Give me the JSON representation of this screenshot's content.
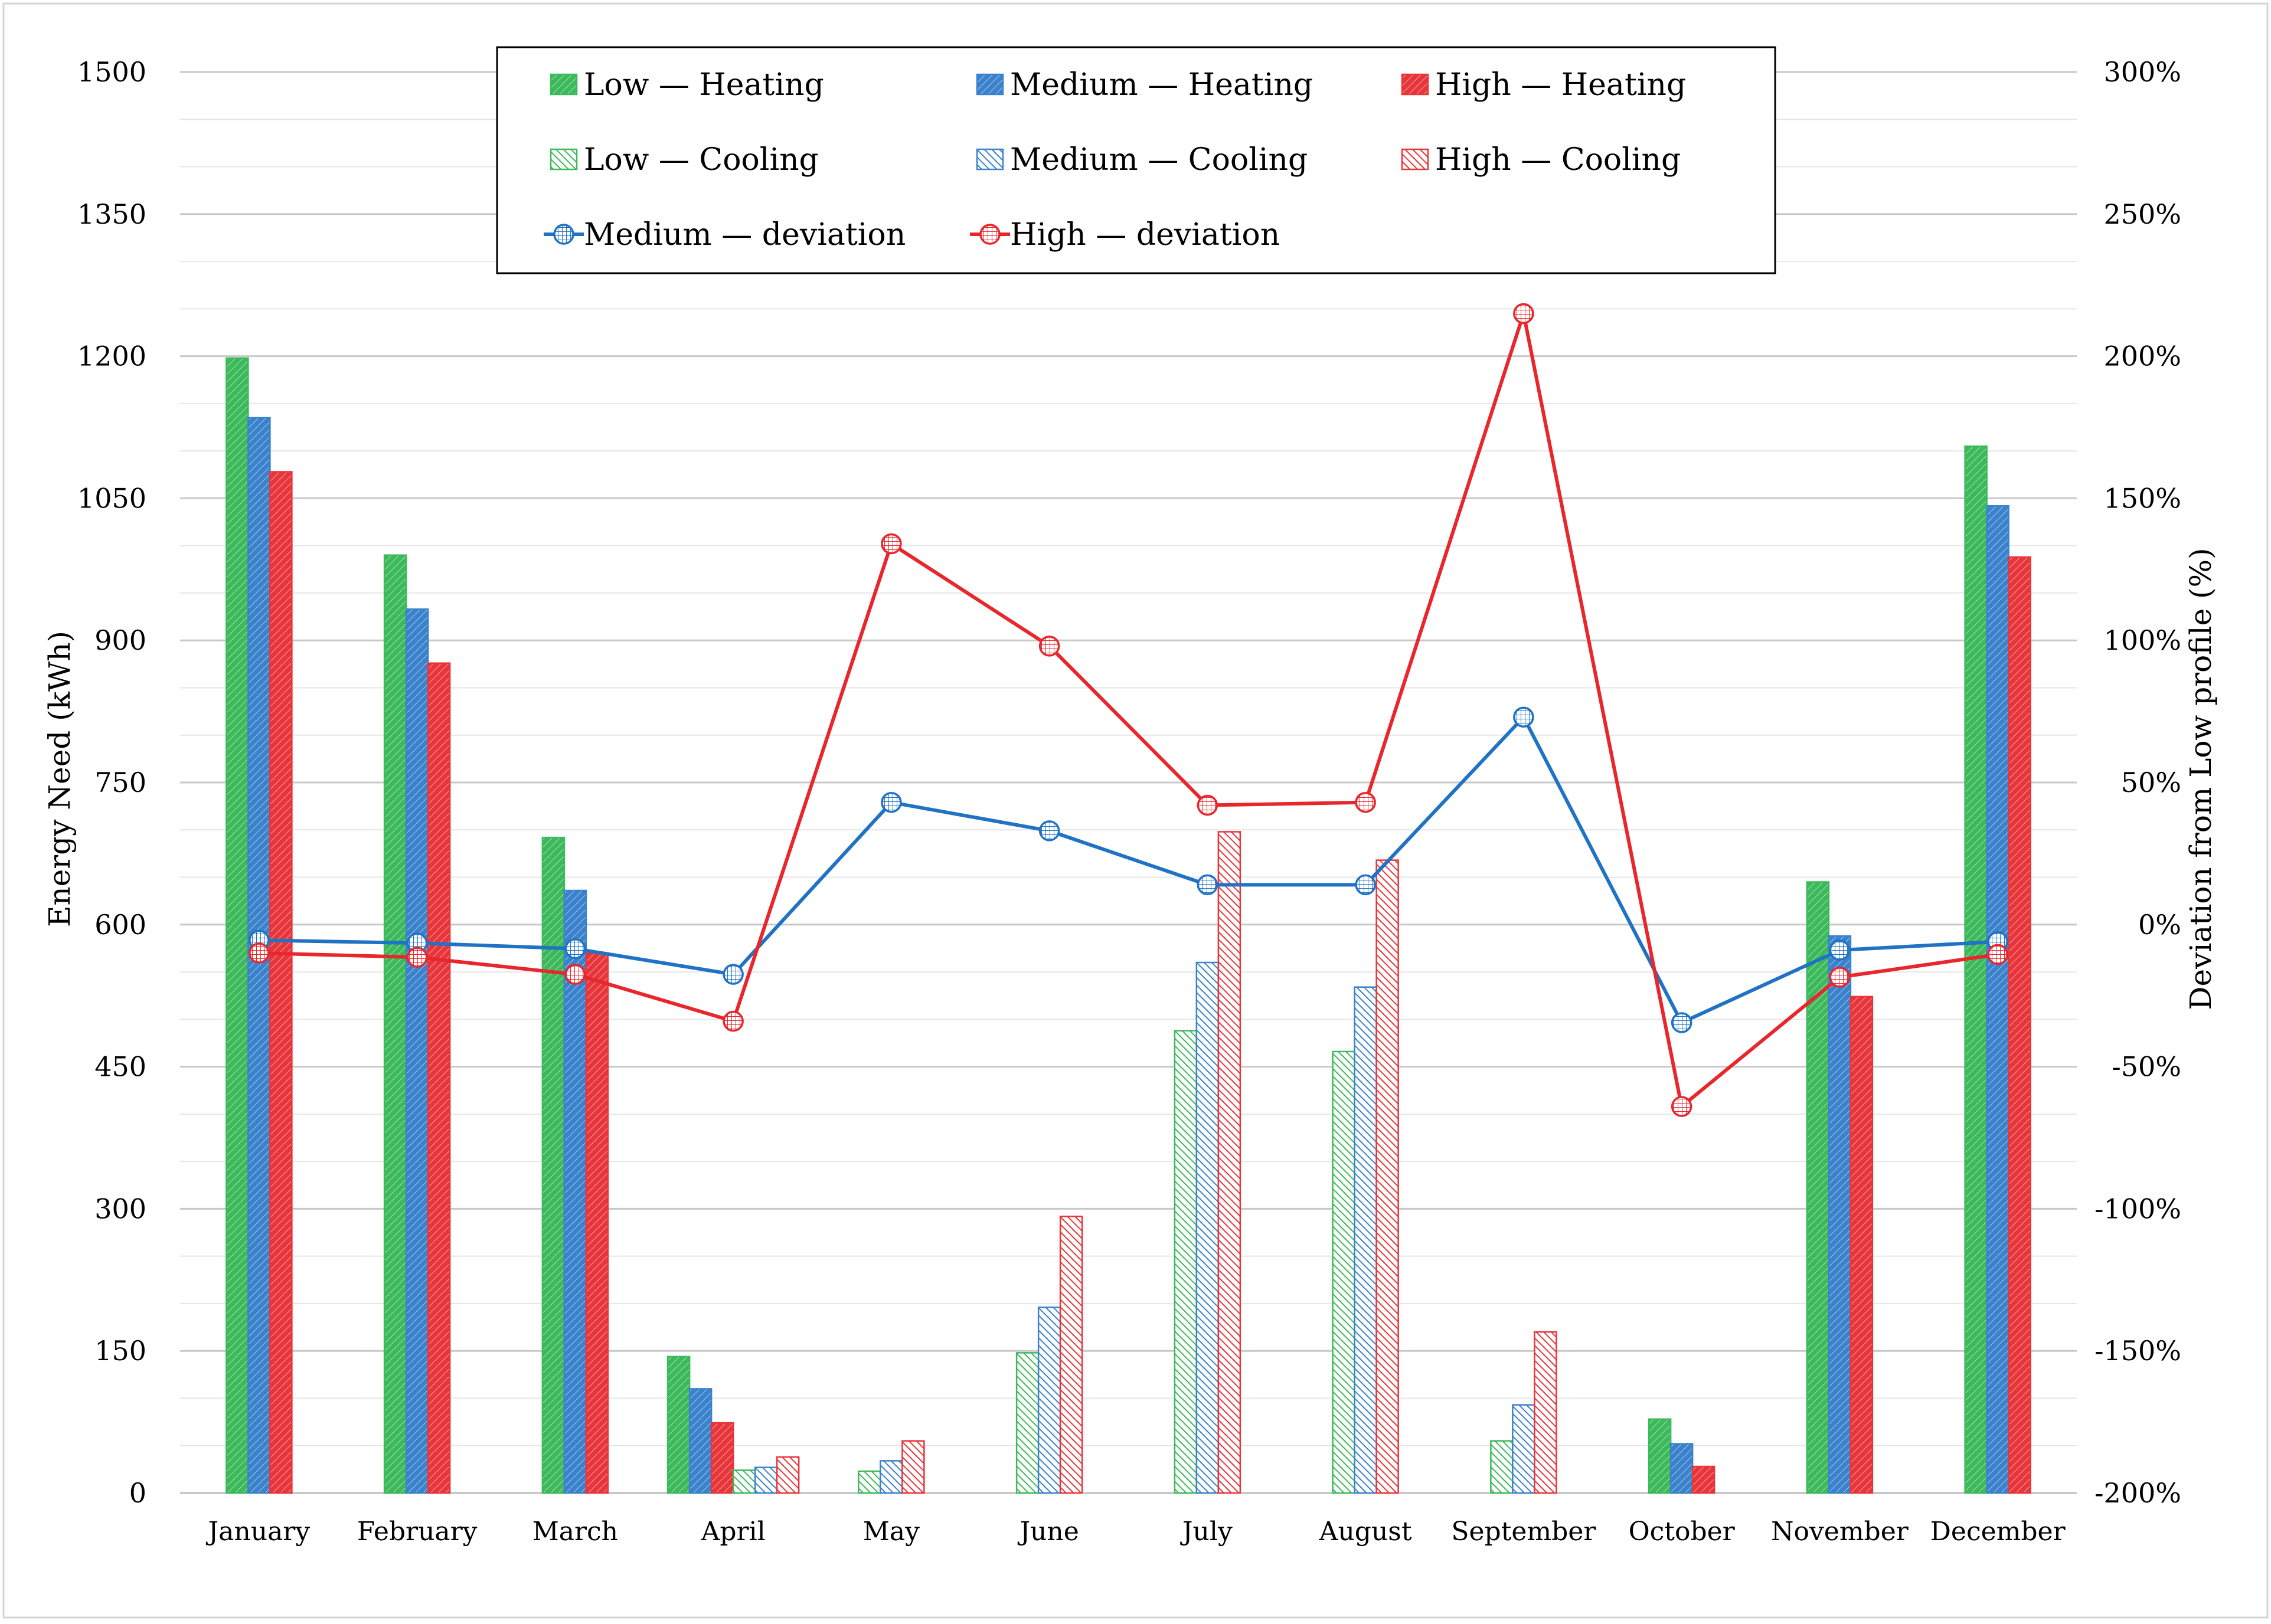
{
  "chart_data": {
    "type": "bar",
    "ylabel": "Energy Need (kWh)",
    "y2label": "Deviation from Low profile (%)",
    "ylim": [
      0,
      1500
    ],
    "y_ticks": [
      "0",
      "150",
      "300",
      "450",
      "600",
      "750",
      "900",
      "1050",
      "1200",
      "1350",
      "1500"
    ],
    "y2lim": [
      -200,
      300
    ],
    "y2_ticks": [
      "-200%",
      "-150%",
      "-100%",
      "-50%",
      "0%",
      "50%",
      "100%",
      "150%",
      "200%",
      "250%",
      "300%"
    ],
    "categories": [
      "January",
      "February",
      "March",
      "April",
      "May",
      "June",
      "July",
      "August",
      "September",
      "October",
      "November",
      "December"
    ],
    "series": [
      {
        "name": "Low —  Heating",
        "kind": "heating",
        "color": "#3cb95a",
        "values": [
          1198,
          990,
          692,
          144,
          0,
          0,
          0,
          0,
          0,
          78,
          645,
          1105
        ]
      },
      {
        "name": "Medium —  Heating",
        "kind": "heating",
        "color": "#3a82cc",
        "values": [
          1135,
          933,
          636,
          110,
          0,
          0,
          0,
          0,
          0,
          52,
          588,
          1042
        ]
      },
      {
        "name": "High —  Heating",
        "kind": "heating",
        "color": "#e8353a",
        "values": [
          1078,
          876,
          570,
          74,
          0,
          0,
          0,
          0,
          0,
          28,
          524,
          988
        ]
      },
      {
        "name": "Low —  Cooling",
        "kind": "cooling",
        "color": "#3cb95a",
        "values": [
          0,
          0,
          0,
          24,
          23,
          148,
          488,
          466,
          55,
          0,
          0,
          0
        ]
      },
      {
        "name": "Medium —  Cooling",
        "kind": "cooling",
        "color": "#3a82cc",
        "values": [
          0,
          0,
          0,
          27,
          34,
          196,
          560,
          534,
          93,
          0,
          0,
          0
        ]
      },
      {
        "name": "High —  Cooling",
        "kind": "cooling",
        "color": "#e8353a",
        "values": [
          0,
          0,
          0,
          38,
          55,
          292,
          698,
          668,
          170,
          0,
          0,
          0
        ]
      }
    ],
    "lines": [
      {
        "name": "Medium — deviation",
        "color": "#1f72c4",
        "values": [
          -5.5,
          -6.5,
          -8.5,
          -17.5,
          43,
          33,
          14,
          14,
          73,
          -34.5,
          -9,
          -6
        ]
      },
      {
        "name": "High — deviation",
        "color": "#e8262c",
        "values": [
          -10,
          -11.5,
          -17.5,
          -34,
          134,
          98,
          42,
          43,
          215,
          -64,
          -18.5,
          -10.5
        ]
      }
    ]
  }
}
